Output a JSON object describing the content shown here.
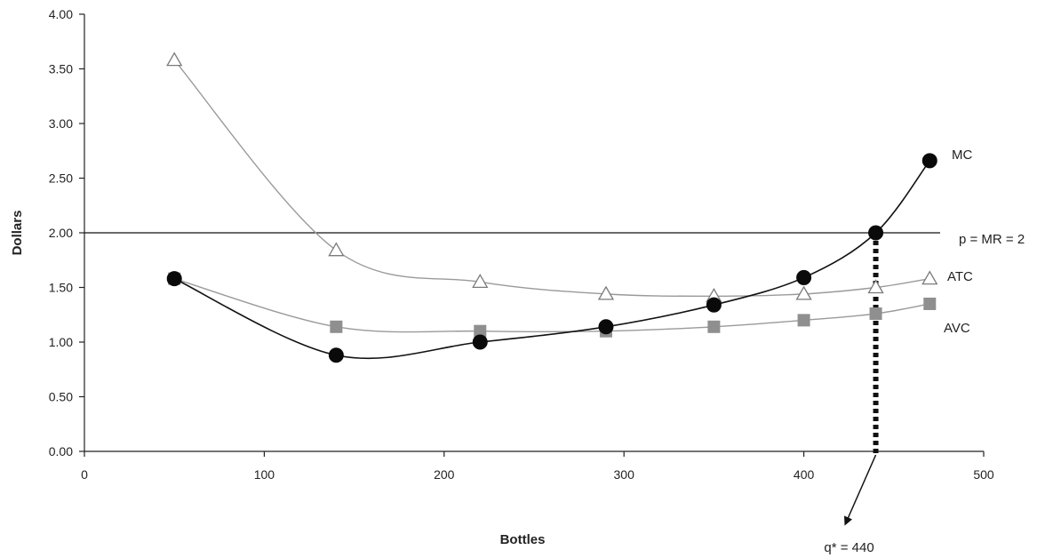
{
  "chart_data": {
    "type": "line",
    "xlabel": "Bottles",
    "ylabel": "Dollars",
    "xlim": [
      0,
      500
    ],
    "ylim": [
      0,
      4
    ],
    "xticks": [
      "0",
      "100",
      "200",
      "300",
      "400",
      "500"
    ],
    "yticks": [
      "0.00",
      "0.50",
      "1.00",
      "1.50",
      "2.00",
      "2.50",
      "3.00",
      "3.50",
      "4.00"
    ],
    "grid": false,
    "series": [
      {
        "name": "ATC",
        "marker": "triangle",
        "color": "#8a8a8a",
        "points": [
          [
            50,
            3.58
          ],
          [
            140,
            1.84
          ],
          [
            220,
            1.55
          ],
          [
            290,
            1.44
          ],
          [
            350,
            1.42
          ],
          [
            400,
            1.44
          ],
          [
            440,
            1.5
          ],
          [
            470,
            1.58
          ]
        ]
      },
      {
        "name": "AVC",
        "marker": "square",
        "color": "#8a8a8a",
        "points": [
          [
            50,
            1.58
          ],
          [
            140,
            1.14
          ],
          [
            220,
            1.1
          ],
          [
            290,
            1.1
          ],
          [
            350,
            1.14
          ],
          [
            400,
            1.2
          ],
          [
            440,
            1.26
          ],
          [
            470,
            1.35
          ]
        ]
      },
      {
        "name": "MC",
        "marker": "circle",
        "color": "#111111",
        "points": [
          [
            50,
            1.58
          ],
          [
            140,
            0.88
          ],
          [
            220,
            1.0
          ],
          [
            290,
            1.14
          ],
          [
            350,
            1.34
          ],
          [
            400,
            1.59
          ],
          [
            440,
            2.0
          ],
          [
            470,
            2.66
          ]
        ]
      }
    ],
    "price_line": {
      "label": "p = MR = 2",
      "y": 2.0
    },
    "optimum": {
      "label": "q* = 440",
      "x": 440,
      "y": 2.0
    }
  }
}
